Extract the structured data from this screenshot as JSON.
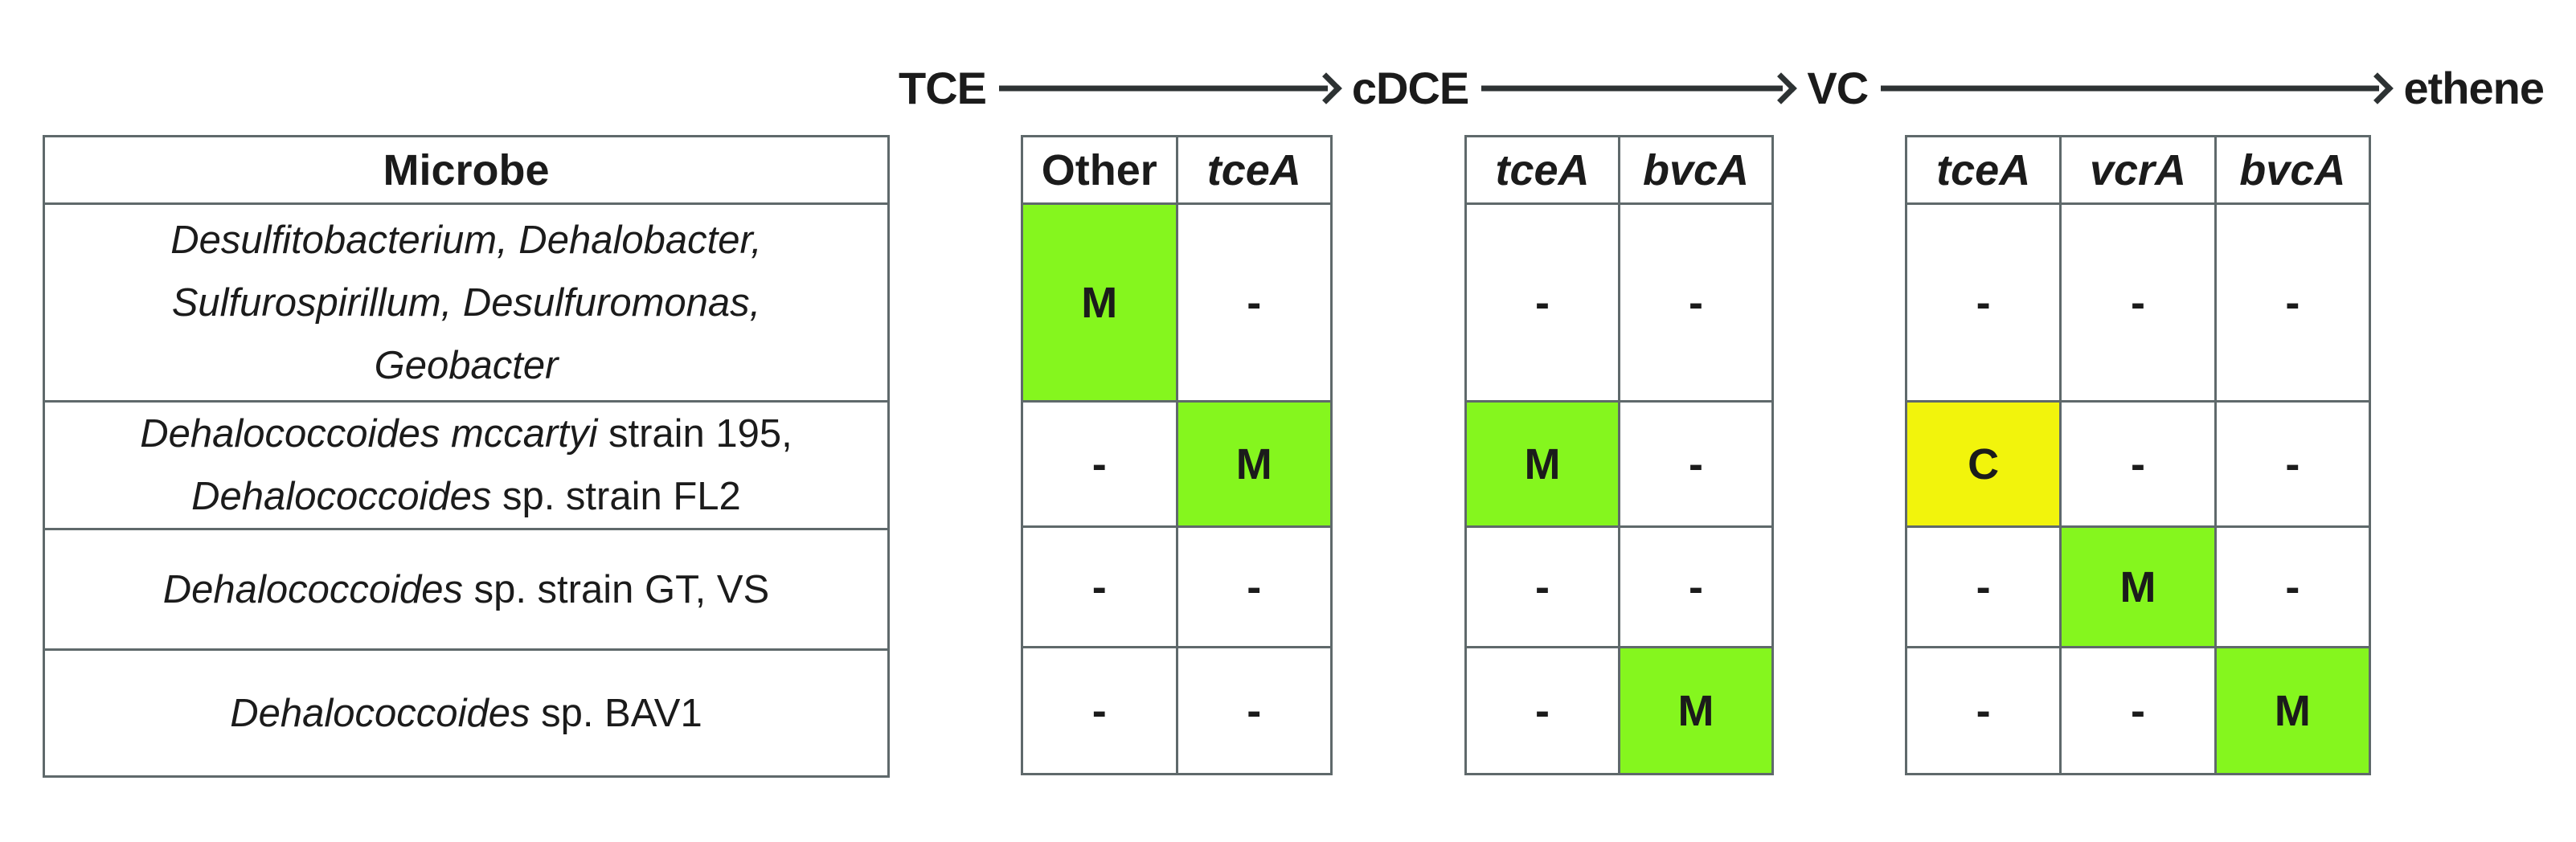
{
  "colors": {
    "green": "#85f61e",
    "yellow": "#f2f40c",
    "border": "#5f696b",
    "ink": "#1b1b1b",
    "arrow": "#2d3233"
  },
  "pathway": {
    "compounds": [
      "TCE",
      "cDCE",
      "VC",
      "ethene"
    ]
  },
  "microbe_table": {
    "header": "Microbe",
    "rows": [
      {
        "lines": [
          [
            {
              "t": "Desulfitobacterium, Dehalobacter,",
              "i": true
            }
          ],
          [
            {
              "t": "Sulfurospirillum, Desulfuromonas,",
              "i": true
            }
          ],
          [
            {
              "t": "Geobacter",
              "i": true
            }
          ]
        ]
      },
      {
        "lines": [
          [
            {
              "t": "Dehalococcoides mccartyi",
              "i": true
            },
            {
              "t": " strain 195,",
              "i": false
            }
          ],
          [
            {
              "t": "Dehalococcoides",
              "i": true
            },
            {
              "t": " sp. strain FL2",
              "i": false
            }
          ]
        ]
      },
      {
        "lines": [
          [
            {
              "t": "Dehalococcoides",
              "i": true
            },
            {
              "t": " sp. strain GT, VS",
              "i": false
            }
          ]
        ]
      },
      {
        "lines": [
          [
            {
              "t": "Dehalococcoides",
              "i": true
            },
            {
              "t": " sp. BAV1",
              "i": false
            }
          ]
        ]
      }
    ]
  },
  "groups": [
    {
      "columns": [
        {
          "label": "Other",
          "gene": false
        },
        {
          "label": "tceA",
          "gene": true
        }
      ],
      "cells": [
        [
          {
            "m": "M",
            "hl": "green"
          },
          {
            "m": "-",
            "hl": ""
          }
        ],
        [
          {
            "m": "-",
            "hl": ""
          },
          {
            "m": "M",
            "hl": "green"
          }
        ],
        [
          {
            "m": "-",
            "hl": ""
          },
          {
            "m": "-",
            "hl": ""
          }
        ],
        [
          {
            "m": "-",
            "hl": ""
          },
          {
            "m": "-",
            "hl": ""
          }
        ]
      ]
    },
    {
      "columns": [
        {
          "label": "tceA",
          "gene": true
        },
        {
          "label": "bvcA",
          "gene": true
        }
      ],
      "cells": [
        [
          {
            "m": "-",
            "hl": ""
          },
          {
            "m": "-",
            "hl": ""
          }
        ],
        [
          {
            "m": "M",
            "hl": "green"
          },
          {
            "m": "-",
            "hl": ""
          }
        ],
        [
          {
            "m": "-",
            "hl": ""
          },
          {
            "m": "-",
            "hl": ""
          }
        ],
        [
          {
            "m": "-",
            "hl": ""
          },
          {
            "m": "M",
            "hl": "green"
          }
        ]
      ]
    },
    {
      "columns": [
        {
          "label": "tceA",
          "gene": true
        },
        {
          "label": "vcrA",
          "gene": true
        },
        {
          "label": "bvcA",
          "gene": true
        }
      ],
      "cells": [
        [
          {
            "m": "-",
            "hl": ""
          },
          {
            "m": "-",
            "hl": ""
          },
          {
            "m": "-",
            "hl": ""
          }
        ],
        [
          {
            "m": "C",
            "hl": "yellow"
          },
          {
            "m": "-",
            "hl": ""
          },
          {
            "m": "-",
            "hl": ""
          }
        ],
        [
          {
            "m": "-",
            "hl": ""
          },
          {
            "m": "M",
            "hl": "green"
          },
          {
            "m": "-",
            "hl": ""
          }
        ],
        [
          {
            "m": "-",
            "hl": ""
          },
          {
            "m": "-",
            "hl": ""
          },
          {
            "m": "M",
            "hl": "green"
          }
        ]
      ]
    }
  ]
}
